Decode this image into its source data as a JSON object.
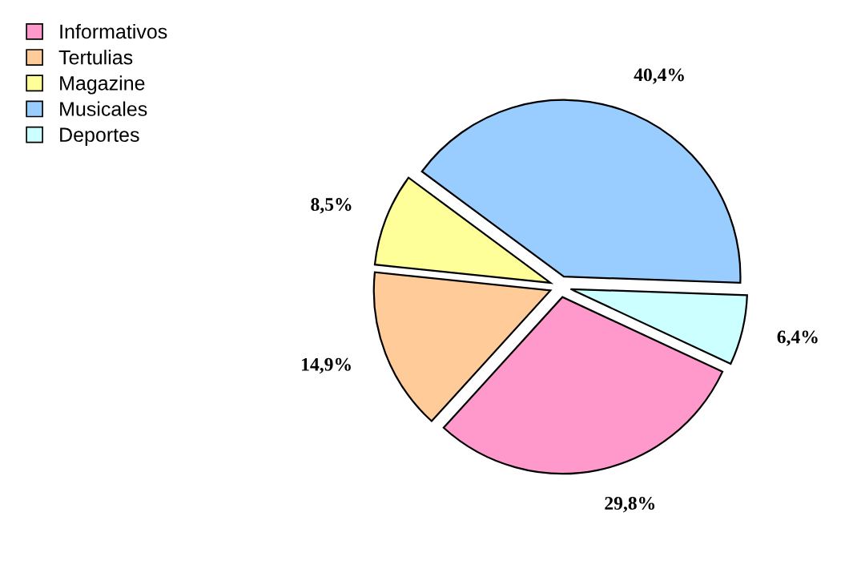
{
  "chart_data": {
    "type": "pie",
    "categories": [
      "Informativos",
      "Tertulias",
      "Magazine",
      "Musicales",
      "Deportes"
    ],
    "values": [
      29.8,
      14.9,
      8.5,
      40.4,
      6.4
    ],
    "value_labels": [
      "29,8%",
      "14,9%",
      "8,5%",
      "40,4%",
      "6,4%"
    ],
    "colors": [
      "#ff99cc",
      "#ffcc99",
      "#ffff99",
      "#99ccff",
      "#ccffff"
    ],
    "legend": "top left"
  }
}
